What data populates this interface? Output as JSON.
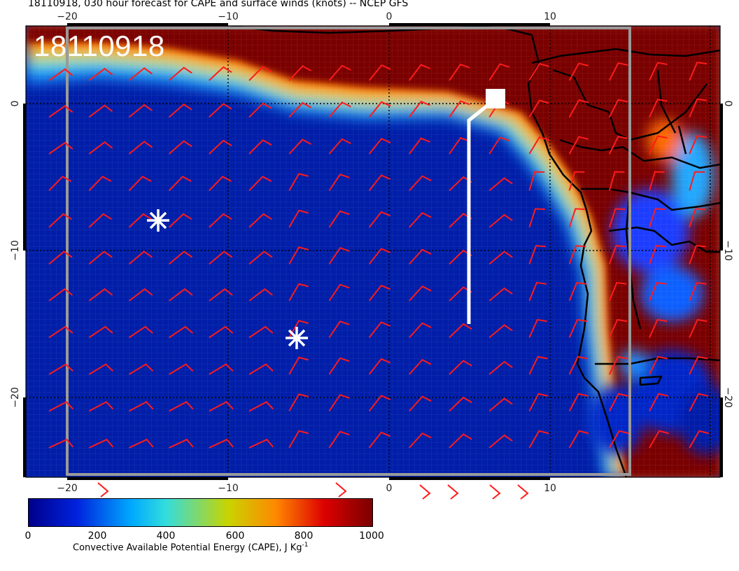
{
  "title": "18110918, 030 hour forecast for CAPE and surface winds (knots) -- NCEP GFS",
  "stamp": "18110918",
  "axes": {
    "lon_ticks": [
      "−20",
      "−10",
      "0",
      "10"
    ],
    "lat_ticks": [
      "0",
      "−10",
      "−20"
    ],
    "lon_range": [
      -22.5,
      20.5
    ],
    "lat_range": [
      -25.5,
      5
    ]
  },
  "colorbar": {
    "label_main": "Convective Available Potential Energy (CAPE), J Kg",
    "label_sup": "-1",
    "ticks": [
      "0",
      "200",
      "400",
      "600",
      "800",
      "1000"
    ],
    "range": [
      0,
      1000
    ],
    "colors": [
      "#00008b",
      "#0022dd",
      "#00aaff",
      "#33dddd",
      "#c8d400",
      "#ff8800",
      "#dd0000",
      "#7a0000"
    ]
  },
  "markers": [
    {
      "type": "asterisk",
      "lon": -14.5,
      "lat": -8
    },
    {
      "type": "asterisk",
      "lon": -5.8,
      "lat": -16
    }
  ],
  "track": [
    [
      5,
      -15
    ],
    [
      5,
      -1
    ],
    [
      6,
      0
    ],
    [
      6.5,
      0
    ]
  ],
  "colors": {
    "ocean": "#001ea8",
    "land": "#7a0000",
    "barbs": "#ff1a1a",
    "coast": "#000000"
  }
}
